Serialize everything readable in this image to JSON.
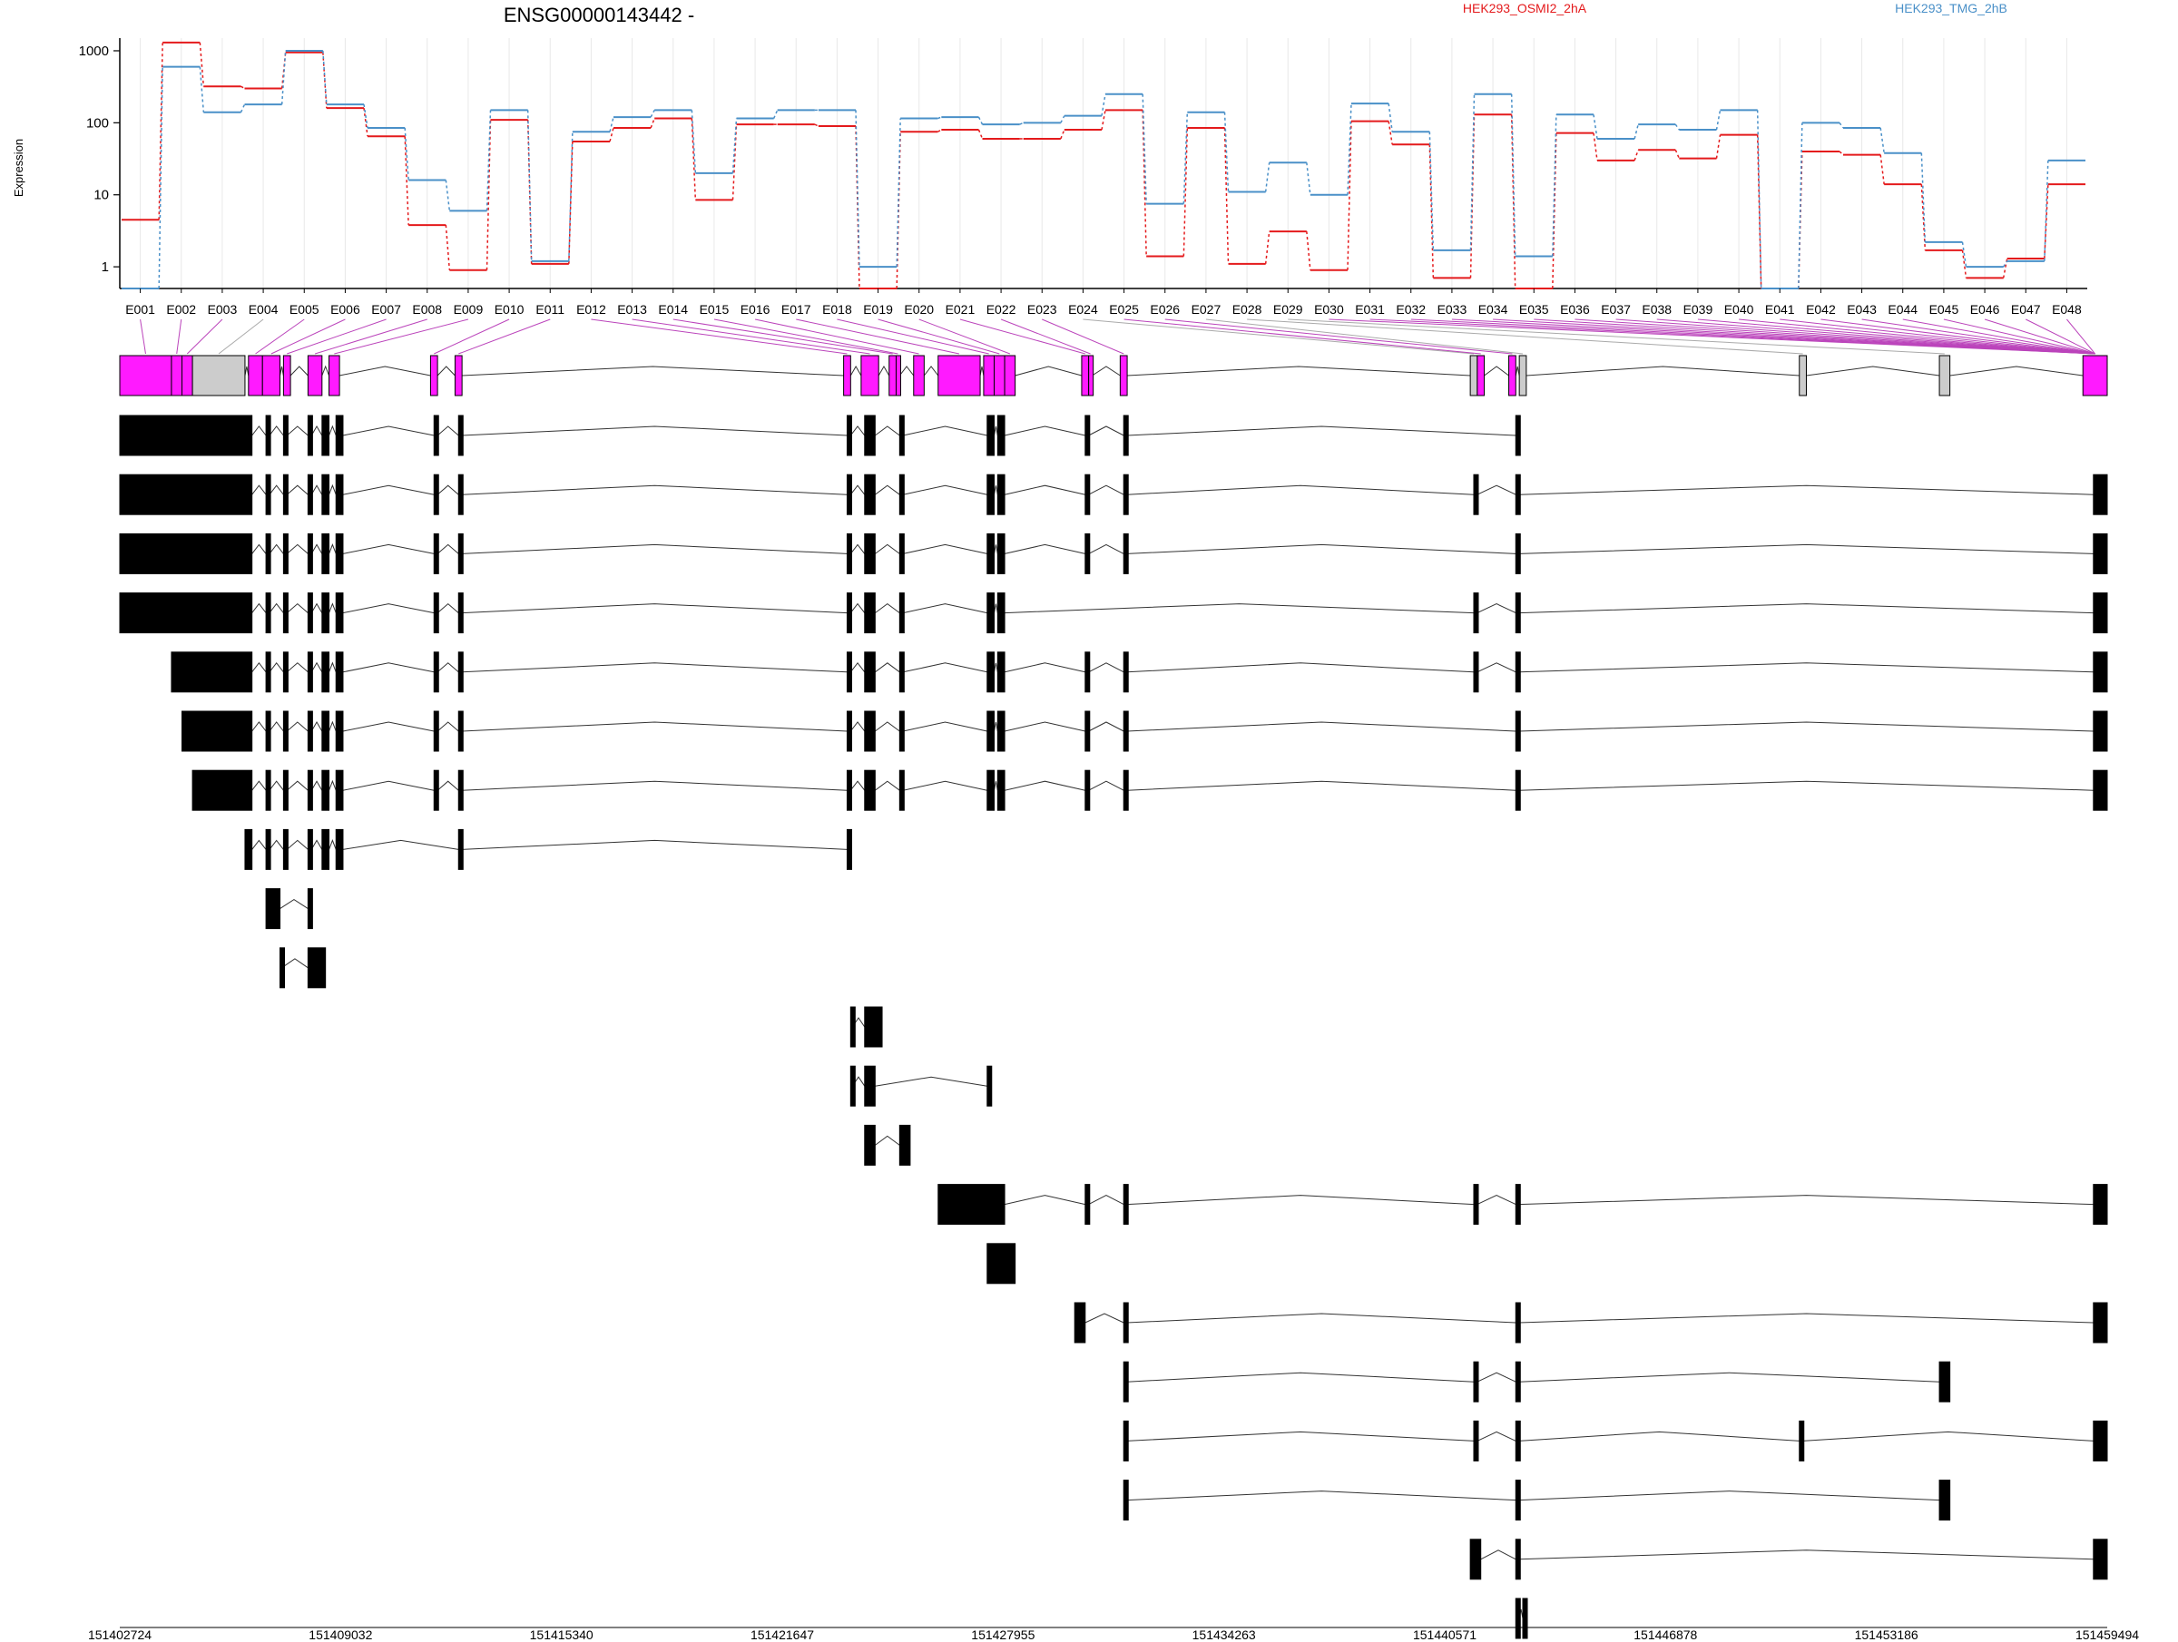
{
  "chart_data": {
    "type": "line",
    "title": "ENSG00000143442 -",
    "ylabel": "Expression",
    "yscale": "log",
    "ylim": [
      0.5,
      1500
    ],
    "yticks": [
      "1000",
      "100",
      "10",
      "1"
    ],
    "grid": true,
    "legend_placement": "top-right",
    "categories": [
      "E001",
      "E002",
      "E003",
      "E004",
      "E005",
      "E006",
      "E007",
      "E008",
      "E009",
      "E010",
      "E011",
      "E012",
      "E013",
      "E014",
      "E015",
      "E016",
      "E017",
      "E018",
      "E019",
      "E020",
      "E021",
      "E022",
      "E023",
      "E024",
      "E025",
      "E026",
      "E027",
      "E028",
      "E029",
      "E030",
      "E031",
      "E032",
      "E033",
      "E034",
      "E035",
      "E036",
      "E037",
      "E038",
      "E039",
      "E040",
      "E041",
      "E042",
      "E043",
      "E044",
      "E045",
      "E046",
      "E047",
      "E048"
    ],
    "series": [
      {
        "name": "HEK293_OSMI2_2hA",
        "color": "#e41a1c",
        "values": [
          4.5,
          1300,
          320,
          300,
          950,
          160,
          65,
          3.8,
          0.9,
          110,
          1.1,
          55,
          85,
          115,
          8.5,
          95,
          95,
          90,
          0.5,
          75,
          80,
          60,
          60,
          80,
          150,
          1.4,
          85,
          1.1,
          3.1,
          0.9,
          105,
          50,
          0.7,
          130,
          0.5,
          72,
          30,
          42,
          32,
          68,
          0.5,
          40,
          36,
          14,
          1.7,
          0.7,
          1.3,
          14
        ]
      },
      {
        "name": "HEK293_TMG_2hB",
        "color": "#4a90c8",
        "values": [
          0.5,
          600,
          140,
          180,
          1000,
          180,
          85,
          16,
          6,
          150,
          1.2,
          75,
          120,
          150,
          20,
          115,
          150,
          150,
          1,
          115,
          120,
          95,
          100,
          125,
          250,
          7.5,
          140,
          11,
          28,
          10,
          185,
          75,
          1.7,
          250,
          1.4,
          130,
          60,
          95,
          80,
          150,
          0.5,
          100,
          85,
          38,
          2.2,
          1,
          1.2,
          30
        ]
      }
    ],
    "genomic_axis": {
      "ticks": [
        "151402724",
        "151409032",
        "151415340",
        "151421647",
        "151427955",
        "151434263",
        "151440571",
        "151446878",
        "151453186",
        "151459494"
      ],
      "start": 151402724,
      "end": 151459494
    },
    "exon_track": [
      [
        151402724,
        151404200,
        "m"
      ],
      [
        151404200,
        151404500,
        "m"
      ],
      [
        151404500,
        151404800,
        "m"
      ],
      [
        151404800,
        151406300,
        "g"
      ],
      [
        151406400,
        151406800,
        "m"
      ],
      [
        151406800,
        151407300,
        "m"
      ],
      [
        151407400,
        151407600,
        "m"
      ],
      [
        151408100,
        151408500,
        "m"
      ],
      [
        151408700,
        151409000,
        "m"
      ],
      [
        151411600,
        151411800,
        "m"
      ],
      [
        151412300,
        151412500,
        "m"
      ],
      [
        151423400,
        151423600,
        "m"
      ],
      [
        151423900,
        151424400,
        "m"
      ],
      [
        151424700,
        151424900,
        "m"
      ],
      [
        151424900,
        151425000,
        "m"
      ],
      [
        151425400,
        151425700,
        "m"
      ],
      [
        151426100,
        151427300,
        "m"
      ],
      [
        151427400,
        151427700,
        "m"
      ],
      [
        151427700,
        151428000,
        "m"
      ],
      [
        151428000,
        151428300,
        "m"
      ],
      [
        151430200,
        151430400,
        "m"
      ],
      [
        151430400,
        151430500,
        "m"
      ],
      [
        151431300,
        151431500,
        "m"
      ],
      [
        151441300,
        151441500,
        "g"
      ],
      [
        151441500,
        151441700,
        "m"
      ],
      [
        151442400,
        151442600,
        "m"
      ],
      [
        151442700,
        151442900,
        "g"
      ],
      [
        151450700,
        151450900,
        "g"
      ],
      [
        151454700,
        151455000,
        "g"
      ],
      [
        151458800,
        151459494,
        "m"
      ]
    ],
    "transcripts": [
      [
        [
          151402724,
          151406500
        ],
        [
          151406900,
          151407000
        ],
        [
          151407400,
          151407500
        ],
        [
          151408100,
          151408200
        ],
        [
          151408500,
          151408700
        ],
        [
          151408900,
          151409100
        ],
        [
          151411700,
          151411800
        ],
        [
          151412400,
          151412500
        ],
        [
          151423500,
          151423600
        ],
        [
          151424000,
          151424300
        ],
        [
          151425000,
          151425100
        ],
        [
          151427500,
          151427700
        ],
        [
          151427800,
          151428000
        ],
        [
          151430300,
          151430400
        ],
        [
          151431400,
          151431500
        ],
        [
          151442600,
          151442700
        ]
      ],
      [
        [
          151402724,
          151406500
        ],
        [
          151406900,
          151407000
        ],
        [
          151407400,
          151407500
        ],
        [
          151408100,
          151408200
        ],
        [
          151408500,
          151408700
        ],
        [
          151408900,
          151409100
        ],
        [
          151411700,
          151411800
        ],
        [
          151412400,
          151412500
        ],
        [
          151423500,
          151423600
        ],
        [
          151424000,
          151424300
        ],
        [
          151425000,
          151425100
        ],
        [
          151427500,
          151427700
        ],
        [
          151427800,
          151428000
        ],
        [
          151430300,
          151430400
        ],
        [
          151431400,
          151431500
        ],
        [
          151441400,
          151441500
        ],
        [
          151442600,
          151442700
        ],
        [
          151459100,
          151459494
        ]
      ],
      [
        [
          151402724,
          151406500
        ],
        [
          151406900,
          151407000
        ],
        [
          151407400,
          151407500
        ],
        [
          151408100,
          151408200
        ],
        [
          151408500,
          151408700
        ],
        [
          151408900,
          151409100
        ],
        [
          151411700,
          151411800
        ],
        [
          151412400,
          151412500
        ],
        [
          151423500,
          151423600
        ],
        [
          151424000,
          151424300
        ],
        [
          151425000,
          151425100
        ],
        [
          151427500,
          151427700
        ],
        [
          151427800,
          151428000
        ],
        [
          151430300,
          151430400
        ],
        [
          151431400,
          151431500
        ],
        [
          151442600,
          151442700
        ],
        [
          151459100,
          151459494
        ]
      ],
      [
        [
          151402724,
          151406500
        ],
        [
          151406900,
          151407000
        ],
        [
          151407400,
          151407500
        ],
        [
          151408100,
          151408200
        ],
        [
          151408500,
          151408700
        ],
        [
          151408900,
          151409100
        ],
        [
          151411700,
          151411800
        ],
        [
          151412400,
          151412500
        ],
        [
          151423500,
          151423600
        ],
        [
          151424000,
          151424300
        ],
        [
          151425000,
          151425100
        ],
        [
          151427500,
          151427700
        ],
        [
          151427800,
          151428000
        ],
        [
          151441400,
          151441500
        ],
        [
          151442600,
          151442700
        ],
        [
          151459100,
          151459494
        ]
      ],
      [
        [
          151404200,
          151406500
        ],
        [
          151406900,
          151407000
        ],
        [
          151407400,
          151407500
        ],
        [
          151408100,
          151408200
        ],
        [
          151408500,
          151408700
        ],
        [
          151408900,
          151409100
        ],
        [
          151411700,
          151411800
        ],
        [
          151412400,
          151412500
        ],
        [
          151423500,
          151423600
        ],
        [
          151424000,
          151424300
        ],
        [
          151425000,
          151425100
        ],
        [
          151427500,
          151427700
        ],
        [
          151427800,
          151428000
        ],
        [
          151430300,
          151430400
        ],
        [
          151431400,
          151431500
        ],
        [
          151441400,
          151441500
        ],
        [
          151442600,
          151442700
        ],
        [
          151459100,
          151459494
        ]
      ],
      [
        [
          151404500,
          151406500
        ],
        [
          151406900,
          151407000
        ],
        [
          151407400,
          151407500
        ],
        [
          151408100,
          151408200
        ],
        [
          151408500,
          151408700
        ],
        [
          151408900,
          151409100
        ],
        [
          151411700,
          151411800
        ],
        [
          151412400,
          151412500
        ],
        [
          151423500,
          151423600
        ],
        [
          151424000,
          151424300
        ],
        [
          151425000,
          151425100
        ],
        [
          151427500,
          151427700
        ],
        [
          151427800,
          151428000
        ],
        [
          151430300,
          151430400
        ],
        [
          151431400,
          151431500
        ],
        [
          151442600,
          151442700
        ],
        [
          151459100,
          151459494
        ]
      ],
      [
        [
          151404800,
          151406500
        ],
        [
          151406900,
          151407000
        ],
        [
          151407400,
          151407500
        ],
        [
          151408100,
          151408200
        ],
        [
          151408500,
          151408700
        ],
        [
          151408900,
          151409100
        ],
        [
          151411700,
          151411800
        ],
        [
          151412400,
          151412500
        ],
        [
          151423500,
          151423600
        ],
        [
          151424000,
          151424300
        ],
        [
          151425000,
          151425100
        ],
        [
          151427500,
          151427700
        ],
        [
          151427800,
          151428000
        ],
        [
          151430300,
          151430400
        ],
        [
          151431400,
          151431500
        ],
        [
          151442600,
          151442700
        ],
        [
          151459100,
          151459494
        ]
      ],
      [
        [
          151406300,
          151406500
        ],
        [
          151406900,
          151407000
        ],
        [
          151407400,
          151407500
        ],
        [
          151408100,
          151408200
        ],
        [
          151408500,
          151408700
        ],
        [
          151408900,
          151409100
        ],
        [
          151412400,
          151412500
        ],
        [
          151423500,
          151423600
        ]
      ],
      [
        [
          151406900,
          151407300
        ],
        [
          151408100,
          151408200
        ]
      ],
      [
        [
          151407300,
          151407350
        ],
        [
          151408100,
          151408600
        ]
      ],
      [
        [
          151423600,
          151423650
        ],
        [
          151424000,
          151424500
        ]
      ],
      [
        [
          151423600,
          151423650
        ],
        [
          151424000,
          151424300
        ],
        [
          151427500,
          151427600
        ]
      ],
      [
        [
          151424000,
          151424300
        ],
        [
          151425000,
          151425300
        ]
      ],
      [
        [
          151426100,
          151428000
        ],
        [
          151430300,
          151430400
        ],
        [
          151431400,
          151431500
        ],
        [
          151441400,
          151441500
        ],
        [
          151442600,
          151442700
        ],
        [
          151459100,
          151459494
        ]
      ],
      [
        [
          151427500,
          151428300
        ]
      ],
      [
        [
          151430000,
          151430300
        ],
        [
          151431400,
          151431500
        ],
        [
          151442600,
          151442700
        ],
        [
          151459100,
          151459494
        ]
      ],
      [
        [
          151431400,
          151431500
        ],
        [
          151441400,
          151441500
        ],
        [
          151442600,
          151442700
        ],
        [
          151454700,
          151455000
        ]
      ],
      [
        [
          151431400,
          151431500
        ],
        [
          151441400,
          151441500
        ],
        [
          151442600,
          151442700
        ],
        [
          151450700,
          151450800
        ],
        [
          151459100,
          151459494
        ]
      ],
      [
        [
          151431400,
          151431500
        ],
        [
          151442600,
          151442700
        ],
        [
          151454700,
          151455000
        ]
      ],
      [
        [
          151441300,
          151441600
        ],
        [
          151442600,
          151442700
        ],
        [
          151459100,
          151459494
        ]
      ],
      [
        [
          151442600,
          151442700
        ],
        [
          151442800,
          151442900
        ]
      ]
    ]
  }
}
